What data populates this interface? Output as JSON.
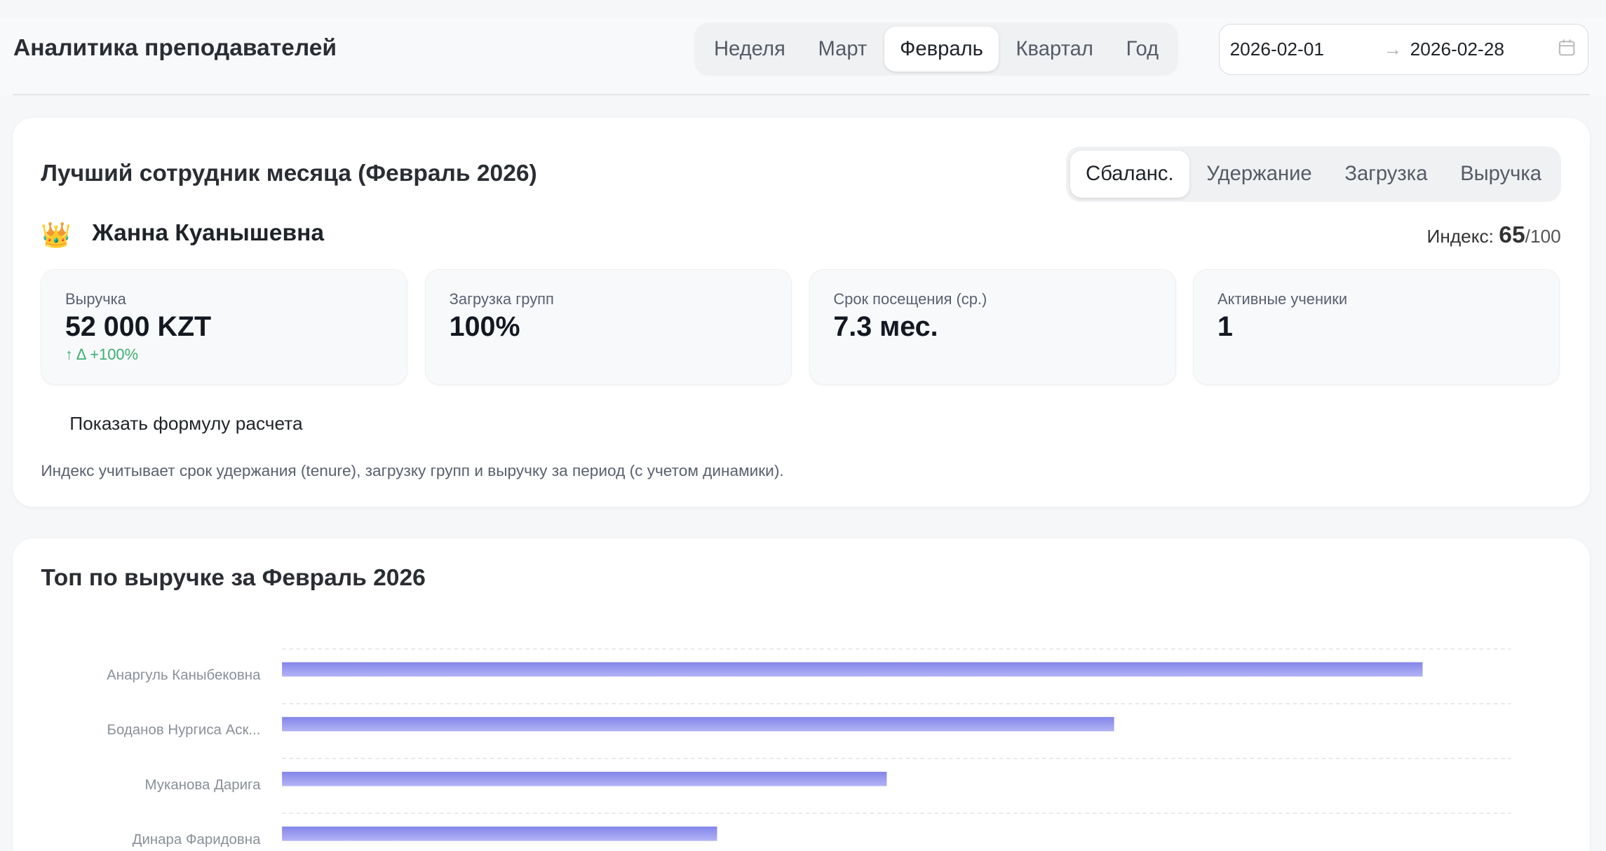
{
  "header": {
    "title": "Аналитика преподавателей",
    "periods": [
      "Неделя",
      "Март",
      "Февраль",
      "Квартал",
      "Год"
    ],
    "active_period": "Февраль",
    "date_from": "2026-02-01",
    "date_arrow": "→",
    "date_to": "2026-02-28",
    "calendar_icon": "calendar-icon"
  },
  "best": {
    "title": "Лучший сотрудник месяца (Февраль 2026)",
    "modes": [
      "Сбаланс.",
      "Удержание",
      "Загрузка",
      "Выручка"
    ],
    "active_mode": "Сбаланс.",
    "crown": "👑",
    "name": "Жанна Куанышевна",
    "index_label": "Индекс:",
    "index_value": "65",
    "index_max": "/100",
    "kpis": [
      {
        "label": "Выручка",
        "value": "52 000 KZT",
        "delta": "↑  Δ +100%"
      },
      {
        "label": "Загрузка групп",
        "value": "100%"
      },
      {
        "label": "Срок посещения (ср.)",
        "value": "7.3 мес."
      },
      {
        "label": "Активные ученики",
        "value": "1"
      }
    ],
    "formula_toggle": "Показать формулу расчета",
    "note": "Индекс учитывает срок удержания (tenure), загрузку групп и выручку за период (с учетом динамики)."
  },
  "chart_data": {
    "type": "bar",
    "orientation": "horizontal",
    "title": "Топ по выручке за Февраль 2026",
    "categories": [
      "Анаргуль Каныбековна",
      "Боданов Нургиса Аск...",
      "Муканова Дарига",
      "Динара Фаридовна"
    ],
    "values": [
      92.8,
      67.7,
      49.2,
      35.4
    ],
    "xlim": [
      0,
      100
    ],
    "grid": true,
    "bar_color": "#8b8cec"
  }
}
